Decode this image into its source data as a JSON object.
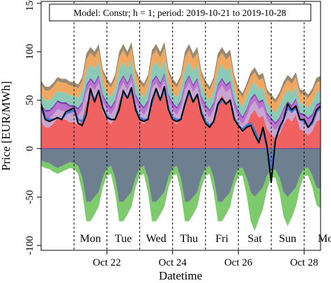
{
  "chart_data": {
    "type": "area",
    "title": "Model: Constr; h = 1; period: 2019-10-21 to 2019-10-28",
    "xlabel": "Datetime",
    "ylabel": "Price [EUR/MWh]",
    "xlim": [
      "2019-10-20 00:00",
      "2019-10-28 12:00"
    ],
    "ylim": [
      -105,
      152
    ],
    "y_ticks": [
      -100,
      -50,
      0,
      50,
      100,
      150
    ],
    "x_ticks": [
      {
        "date": "2019-10-22 00:00",
        "label": "Oct 22"
      },
      {
        "date": "2019-10-24 00:00",
        "label": "Oct 24"
      },
      {
        "date": "2019-10-26 00:00",
        "label": "Oct 26"
      },
      {
        "date": "2019-10-28 00:00",
        "label": "Oct 28"
      }
    ],
    "day_separators": [
      "2019-10-21 00:00",
      "2019-10-22 00:00",
      "2019-10-23 00:00",
      "2019-10-24 00:00",
      "2019-10-25 00:00",
      "2019-10-26 00:00",
      "2019-10-27 00:00",
      "2019-10-28 00:00"
    ],
    "day_labels": [
      {
        "date": "2019-10-21 12:00",
        "label": "Mon"
      },
      {
        "date": "2019-10-22 12:00",
        "label": "Tue"
      },
      {
        "date": "2019-10-23 12:00",
        "label": "Wed"
      },
      {
        "date": "2019-10-24 12:00",
        "label": "Thu"
      },
      {
        "date": "2019-10-25 12:00",
        "label": "Fri"
      },
      {
        "date": "2019-10-26 12:00",
        "label": "Sat"
      },
      {
        "date": "2019-10-27 12:00",
        "label": "Sun"
      },
      {
        "date": "2019-10-28 12:00",
        "label": "Mon"
      }
    ],
    "zero_line": 0,
    "grid": false,
    "legend": "none",
    "x": [
      "2019-10-20 00:00",
      "2019-10-20 03:00",
      "2019-10-20 06:00",
      "2019-10-20 09:00",
      "2019-10-20 12:00",
      "2019-10-20 15:00",
      "2019-10-20 18:00",
      "2019-10-20 21:00",
      "2019-10-21 00:00",
      "2019-10-21 03:00",
      "2019-10-21 06:00",
      "2019-10-21 09:00",
      "2019-10-21 12:00",
      "2019-10-21 15:00",
      "2019-10-21 18:00",
      "2019-10-21 21:00",
      "2019-10-22 00:00",
      "2019-10-22 03:00",
      "2019-10-22 06:00",
      "2019-10-22 09:00",
      "2019-10-22 12:00",
      "2019-10-22 15:00",
      "2019-10-22 18:00",
      "2019-10-22 21:00",
      "2019-10-23 00:00",
      "2019-10-23 03:00",
      "2019-10-23 06:00",
      "2019-10-23 09:00",
      "2019-10-23 12:00",
      "2019-10-23 15:00",
      "2019-10-23 18:00",
      "2019-10-23 21:00",
      "2019-10-24 00:00",
      "2019-10-24 03:00",
      "2019-10-24 06:00",
      "2019-10-24 09:00",
      "2019-10-24 12:00",
      "2019-10-24 15:00",
      "2019-10-24 18:00",
      "2019-10-24 21:00",
      "2019-10-25 00:00",
      "2019-10-25 03:00",
      "2019-10-25 06:00",
      "2019-10-25 09:00",
      "2019-10-25 12:00",
      "2019-10-25 15:00",
      "2019-10-25 18:00",
      "2019-10-25 21:00",
      "2019-10-26 00:00",
      "2019-10-26 03:00",
      "2019-10-26 06:00",
      "2019-10-26 09:00",
      "2019-10-26 12:00",
      "2019-10-26 15:00",
      "2019-10-26 18:00",
      "2019-10-26 21:00",
      "2019-10-27 00:00",
      "2019-10-27 03:00",
      "2019-10-27 06:00",
      "2019-10-27 09:00",
      "2019-10-27 12:00",
      "2019-10-27 15:00",
      "2019-10-27 18:00",
      "2019-10-27 21:00",
      "2019-10-28 00:00",
      "2019-10-28 03:00",
      "2019-10-28 06:00",
      "2019-10-28 09:00",
      "2019-10-28 12:00"
    ],
    "stacked_positive": [
      {
        "color": "#f06262",
        "values": [
          28,
          22,
          22,
          26,
          32,
          30,
          30,
          27,
          28,
          24,
          30,
          48,
          55,
          50,
          58,
          38,
          30,
          25,
          32,
          50,
          58,
          50,
          60,
          38,
          30,
          25,
          32,
          52,
          58,
          50,
          60,
          38,
          30,
          25,
          32,
          50,
          58,
          48,
          55,
          36,
          28,
          22,
          30,
          48,
          55,
          48,
          52,
          32,
          22,
          16,
          24,
          35,
          40,
          32,
          34,
          20,
          15,
          10,
          15,
          25,
          32,
          28,
          35,
          20,
          18,
          14,
          18,
          28,
          30
        ]
      },
      {
        "color": "#c9a6cf",
        "values": [
          9,
          9,
          9,
          9,
          9,
          9,
          9,
          9,
          9,
          10,
          10,
          10,
          10,
          10,
          10,
          10,
          10,
          10,
          10,
          10,
          10,
          10,
          10,
          10,
          10,
          10,
          10,
          10,
          10,
          10,
          10,
          10,
          10,
          10,
          10,
          10,
          10,
          10,
          10,
          10,
          10,
          10,
          10,
          10,
          10,
          10,
          10,
          10,
          9,
          9,
          9,
          9,
          9,
          9,
          9,
          9,
          9,
          9,
          9,
          9,
          9,
          9,
          9,
          9,
          10,
          10,
          10,
          10,
          10
        ]
      },
      {
        "color": "#b874cf",
        "values": [
          7,
          7,
          7,
          7,
          7,
          7,
          7,
          7,
          6,
          6,
          6,
          6,
          6,
          6,
          6,
          6,
          6,
          6,
          6,
          6,
          6,
          6,
          6,
          6,
          6,
          6,
          6,
          6,
          6,
          6,
          6,
          6,
          6,
          6,
          6,
          6,
          6,
          6,
          6,
          6,
          6,
          6,
          6,
          6,
          6,
          6,
          6,
          6,
          6,
          6,
          6,
          6,
          6,
          6,
          6,
          6,
          6,
          6,
          6,
          6,
          6,
          6,
          6,
          6,
          6,
          6,
          6,
          6,
          6
        ]
      },
      {
        "color": "#7a3fb0",
        "values": [
          2,
          2,
          2,
          2,
          2,
          2,
          2,
          2,
          2,
          2,
          2,
          2,
          2,
          2,
          2,
          2,
          2,
          2,
          2,
          2,
          2,
          2,
          2,
          2,
          2,
          2,
          2,
          2,
          2,
          2,
          2,
          2,
          2,
          2,
          2,
          2,
          2,
          2,
          2,
          2,
          2,
          2,
          2,
          2,
          2,
          2,
          2,
          2,
          2,
          2,
          2,
          2,
          2,
          2,
          2,
          2,
          2,
          2,
          2,
          2,
          2,
          2,
          2,
          2,
          2,
          2,
          2,
          2,
          2
        ]
      },
      {
        "color": "#8ccab8",
        "values": [
          10,
          10,
          10,
          10,
          10,
          10,
          10,
          10,
          10,
          10,
          12,
          14,
          14,
          14,
          14,
          12,
          10,
          10,
          12,
          14,
          14,
          14,
          14,
          12,
          10,
          10,
          12,
          14,
          14,
          14,
          14,
          12,
          10,
          10,
          12,
          14,
          14,
          14,
          14,
          12,
          10,
          10,
          12,
          14,
          14,
          14,
          14,
          12,
          10,
          10,
          12,
          12,
          12,
          12,
          12,
          10,
          10,
          10,
          12,
          12,
          12,
          12,
          12,
          10,
          10,
          10,
          12,
          12,
          12
        ]
      },
      {
        "color": "#f0a860",
        "values": [
          10,
          10,
          10,
          10,
          10,
          10,
          10,
          10,
          10,
          10,
          10,
          12,
          12,
          12,
          12,
          10,
          10,
          10,
          10,
          12,
          12,
          12,
          12,
          10,
          10,
          10,
          10,
          12,
          12,
          12,
          12,
          10,
          10,
          10,
          10,
          12,
          12,
          12,
          12,
          10,
          10,
          10,
          10,
          12,
          12,
          12,
          12,
          10,
          10,
          10,
          10,
          10,
          10,
          10,
          10,
          10,
          10,
          10,
          10,
          10,
          10,
          10,
          10,
          10,
          10,
          10,
          10,
          10,
          10
        ]
      },
      {
        "color": "#9a8870",
        "values": [
          4,
          4,
          4,
          4,
          4,
          4,
          4,
          4,
          4,
          4,
          4,
          6,
          6,
          6,
          6,
          4,
          4,
          4,
          4,
          6,
          6,
          6,
          6,
          4,
          4,
          4,
          4,
          6,
          6,
          6,
          6,
          4,
          4,
          4,
          4,
          6,
          6,
          6,
          6,
          4,
          4,
          4,
          4,
          6,
          6,
          6,
          6,
          4,
          4,
          4,
          4,
          5,
          5,
          5,
          5,
          4,
          4,
          4,
          4,
          5,
          5,
          5,
          5,
          4,
          4,
          4,
          4,
          5,
          5
        ]
      }
    ],
    "stacked_negative": [
      {
        "color": "#6e8090",
        "values": [
          -12,
          -14,
          -15,
          -18,
          -20,
          -18,
          -16,
          -14,
          -15,
          -18,
          -30,
          -55,
          -55,
          -50,
          -45,
          -30,
          -20,
          -18,
          -30,
          -55,
          -55,
          -50,
          -45,
          -30,
          -20,
          -18,
          -30,
          -55,
          -55,
          -50,
          -45,
          -30,
          -20,
          -18,
          -30,
          -55,
          -55,
          -50,
          -45,
          -30,
          -20,
          -18,
          -30,
          -55,
          -55,
          -50,
          -45,
          -30,
          -20,
          -20,
          -30,
          -45,
          -50,
          -45,
          -40,
          -28,
          -22,
          -22,
          -30,
          -45,
          -50,
          -45,
          -40,
          -28,
          -20,
          -20,
          -28,
          -40,
          -42
        ]
      },
      {
        "color": "#7ecb6e",
        "values": [
          -6,
          -6,
          -6,
          -6,
          -6,
          -6,
          -6,
          -6,
          -6,
          -8,
          -15,
          -20,
          -20,
          -18,
          -15,
          -10,
          -8,
          -8,
          -15,
          -20,
          -20,
          -18,
          -15,
          -10,
          -8,
          -8,
          -15,
          -20,
          -20,
          -18,
          -15,
          -10,
          -8,
          -8,
          -15,
          -20,
          -20,
          -18,
          -15,
          -10,
          -8,
          -8,
          -15,
          -20,
          -20,
          -18,
          -15,
          -10,
          -8,
          -8,
          -18,
          -30,
          -35,
          -28,
          -22,
          -14,
          -8,
          -8,
          -15,
          -25,
          -30,
          -26,
          -20,
          -12,
          -8,
          -8,
          -12,
          -18,
          -20
        ]
      }
    ],
    "price_actual": {
      "color": "#000000",
      "values": [
        46,
        30,
        28,
        30,
        32,
        30,
        38,
        40,
        42,
        26,
        24,
        35,
        62,
        48,
        60,
        42,
        32,
        30,
        30,
        40,
        60,
        52,
        63,
        40,
        30,
        28,
        30,
        50,
        62,
        50,
        64,
        40,
        30,
        28,
        30,
        46,
        60,
        48,
        56,
        36,
        26,
        22,
        28,
        46,
        52,
        46,
        50,
        30,
        24,
        18,
        22,
        24,
        14,
        6,
        22,
        2,
        -35,
        8,
        22,
        30,
        46,
        40,
        44,
        30,
        30,
        22,
        28,
        40,
        44
      ]
    },
    "price_model": {
      "color": "#3a78d8",
      "values": [
        44,
        32,
        30,
        30,
        32,
        30,
        36,
        38,
        40,
        30,
        28,
        38,
        58,
        50,
        60,
        42,
        34,
        30,
        30,
        42,
        58,
        52,
        60,
        42,
        32,
        30,
        30,
        48,
        60,
        50,
        60,
        42,
        32,
        30,
        30,
        46,
        58,
        48,
        56,
        38,
        28,
        24,
        28,
        44,
        50,
        46,
        50,
        32,
        24,
        20,
        24,
        26,
        18,
        8,
        18,
        0,
        -20,
        10,
        20,
        30,
        42,
        38,
        42,
        30,
        28,
        22,
        26,
        38,
        42
      ]
    }
  }
}
